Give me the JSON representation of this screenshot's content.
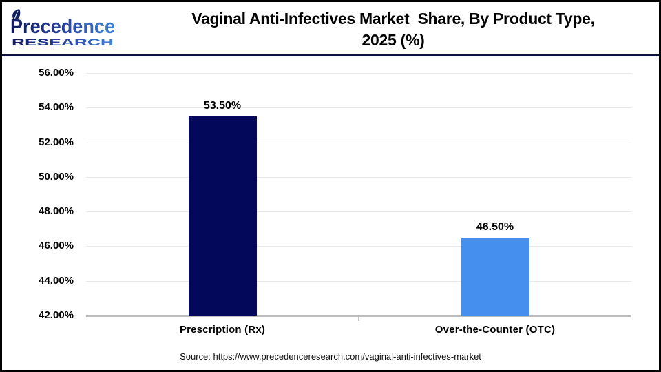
{
  "header": {
    "logo": {
      "line1": "Precedence",
      "line2": "RESEARCH"
    },
    "title_line1": "Vaginal Anti-Infectives Market  Share, By Product Type,",
    "title_line2": "2025 (%)"
  },
  "brand_colors": {
    "logo_dark": "#101b5e",
    "logo_mid": "#27409e",
    "logo_light": "#3f83d9",
    "divider_navy": "#0e1342"
  },
  "chart_data": {
    "type": "bar",
    "title": "Vaginal Anti-Infectives Market Share, By Product Type, 2025 (%)",
    "categories": [
      "Prescription (Rx)",
      "Over-the-Counter (OTC)"
    ],
    "values": [
      53.5,
      46.5
    ],
    "value_labels": [
      "53.50%",
      "46.50%"
    ],
    "bar_colors": [
      "#03085A",
      "#4590EE"
    ],
    "xlabel": "",
    "ylabel": "",
    "ylim": [
      42,
      56
    ],
    "ytick_step": 2,
    "yticks": [
      "56.00%",
      "54.00%",
      "52.00%",
      "50.00%",
      "48.00%",
      "46.00%",
      "44.00%",
      "42.00%"
    ],
    "grid": "horizontal-light",
    "gridline_color": "#E9E9E9",
    "axis_line_color": "#BFBFBF",
    "legend": "none"
  },
  "footer": {
    "source": "Source: https://www.precedenceresearch.com/vaginal-anti-infectives-market"
  }
}
